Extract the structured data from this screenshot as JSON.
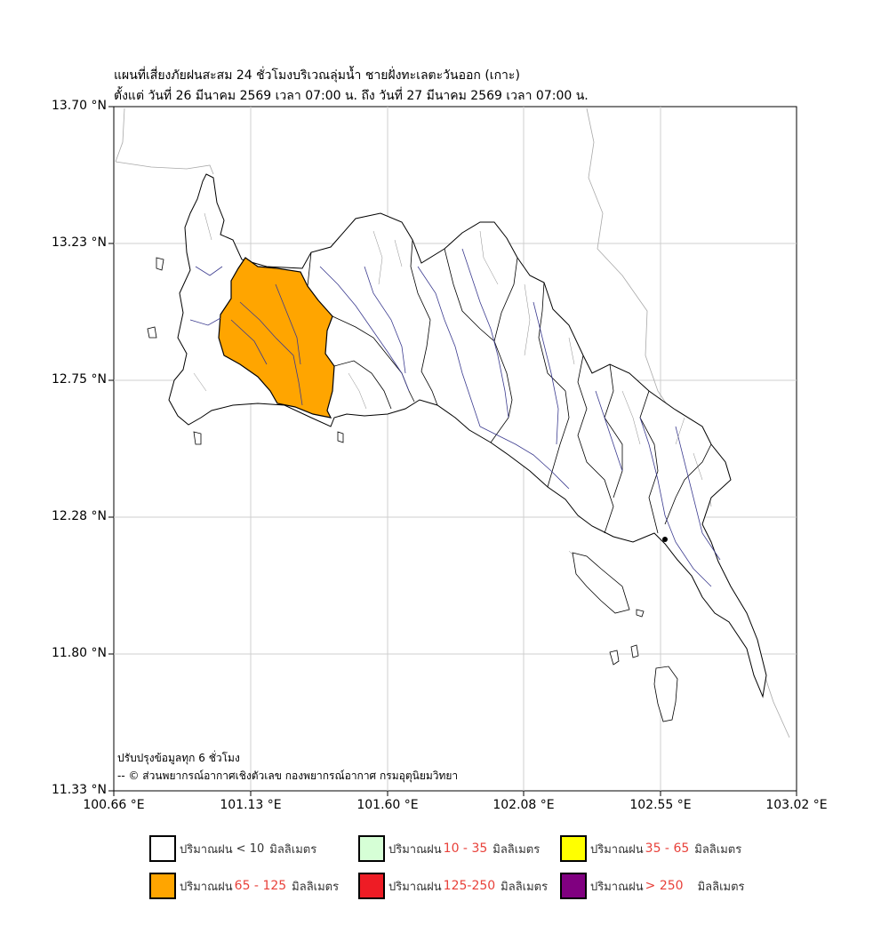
{
  "title": {
    "line1": "แผนที่เสี่ยงภัยฝนสะสม 24 ชั่วโมงบริเวณลุ่มน้ำ ชายฝั่งทะเลตะวันออก (เกาะ)",
    "line2": "ตั้งแต่ วันที่ 26 มีนาคม 2569 เวลา 07:00 น. ถึง วันที่ 27 มีนาคม 2569 เวลา 07:00 น."
  },
  "axes": {
    "y_ticks": [
      "13.70 °N",
      "13.23 °N",
      "12.75 °N",
      "12.28 °N",
      "11.80 °N",
      "11.33 °N"
    ],
    "x_ticks": [
      "100.66 °E",
      "101.13 °E",
      "101.60 °E",
      "102.08 °E",
      "102.55 °E",
      "103.02 °E"
    ],
    "lat_range": [
      11.33,
      13.7
    ],
    "lon_range": [
      100.66,
      103.02
    ],
    "grid": true
  },
  "notes": {
    "update": "ปรับปรุงข้อมูลทุก 6 ชั่วโมง",
    "credit": "-- © ส่วนพยากรณ์อากาศเชิงตัวเลข กองพยากรณ์อากาศ กรมอุตุนิยมวิทยา"
  },
  "legend": [
    {
      "prefix": "ปริมาณฝน",
      "range": "< 10",
      "unit": "มิลลิเมตร",
      "color": "#ffffff"
    },
    {
      "prefix": "ปริมาณฝน",
      "range": "10 - 35",
      "unit": "มิลลิเมตร",
      "color": "#d6ffd6"
    },
    {
      "prefix": "ปริมาณฝน",
      "range": "35 - 65",
      "unit": "มิลลิเมตร",
      "color": "#ffff00"
    },
    {
      "prefix": "ปริมาณฝน",
      "range": "65 - 125",
      "unit": "มิลลิเมตร",
      "color": "#ffa500"
    },
    {
      "prefix": "ปริมาณฝน",
      "range": "125-250",
      "unit": "มิลลิเมตร",
      "color": "#ee1c25"
    },
    {
      "prefix": "ปริมาณฝน",
      "range": "> 250",
      "unit": "มิลลิเมตร",
      "color": "#800080"
    }
  ],
  "colors": {
    "highlight_basin": "#ffa500",
    "rivers": "#3b3b8f",
    "boundary": "#000000",
    "grid": "#cccccc"
  }
}
